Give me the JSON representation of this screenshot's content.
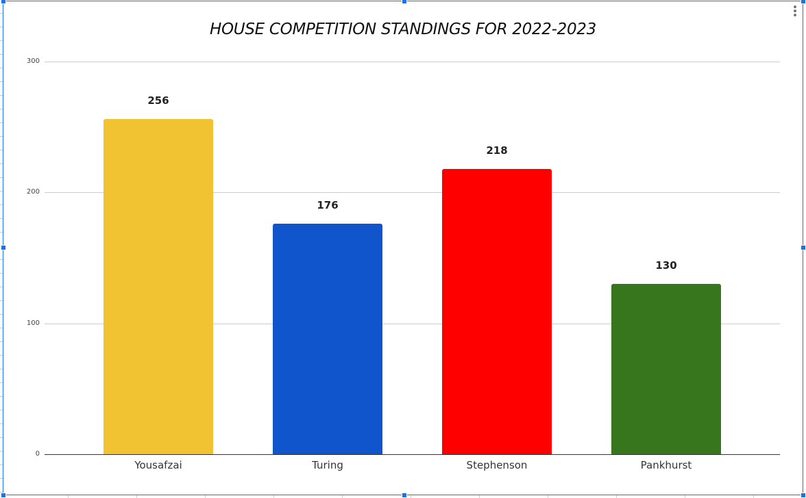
{
  "chart_data": {
    "type": "bar",
    "title": "HOUSE COMPETITION STANDINGS FOR 2022-2023",
    "xlabel": "",
    "ylabel": "",
    "categories": [
      "Yousafzai",
      "Turing",
      "Stephenson",
      "Pankhurst"
    ],
    "values": [
      256,
      176,
      218,
      130
    ],
    "colors": [
      "#f1c232",
      "#1155cc",
      "#ff0000",
      "#38761d"
    ],
    "data_labels": [
      "256",
      "176",
      "218",
      "130"
    ],
    "ylim": [
      0,
      300
    ],
    "yticks": [
      0,
      100,
      200,
      300
    ],
    "grid": true,
    "legend": "none"
  },
  "yticks_labels": [
    "300",
    "200",
    "100",
    "0"
  ],
  "menu": {
    "icon": "more-vert-icon"
  },
  "selection_color": "#1a73e8"
}
